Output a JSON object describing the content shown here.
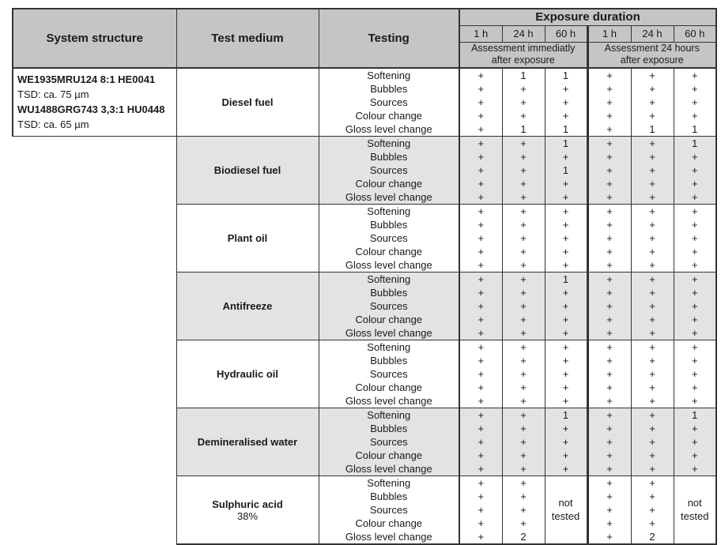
{
  "table": {
    "col_headers": {
      "system_structure": "System structure",
      "test_medium": "Test medium",
      "testing": "Testing"
    },
    "exposure": {
      "title": "Exposure duration",
      "times": [
        "1 h",
        "24 h",
        "60 h",
        "1 h",
        "24 h",
        "60 h"
      ],
      "group_labels": [
        "Assessment immediatly after exposure",
        "Assessment 24 hours after exposure"
      ]
    },
    "system_structure_lines": [
      {
        "text": "WE1935MRU124 8:1 HE0041",
        "bold": true
      },
      {
        "text": "TSD: ca. 75 µm",
        "bold": false
      },
      {
        "text": "WU1488GRG743 3,3:1 HU0448",
        "bold": true
      },
      {
        "text": "TSD: ca. 65 µm",
        "bold": false
      }
    ],
    "testing_labels": [
      "Softening",
      "Bubbles",
      "Sources",
      "Colour change",
      "Gloss level change"
    ],
    "not_tested": "not tested",
    "sections": [
      {
        "medium": "Diesel fuel",
        "medium_line2": "",
        "shaded": false,
        "rows": [
          [
            "+",
            "1",
            "1",
            "+",
            "+",
            "+"
          ],
          [
            "+",
            "+",
            "+",
            "+",
            "+",
            "+"
          ],
          [
            "+",
            "+",
            "+",
            "+",
            "+",
            "+"
          ],
          [
            "+",
            "+",
            "+",
            "+",
            "+",
            "+"
          ],
          [
            "+",
            "1",
            "1",
            "+",
            "1",
            "1"
          ]
        ]
      },
      {
        "medium": "Biodiesel fuel",
        "medium_line2": "",
        "shaded": true,
        "rows": [
          [
            "+",
            "+",
            "1",
            "+",
            "+",
            "1"
          ],
          [
            "+",
            "+",
            "+",
            "+",
            "+",
            "+"
          ],
          [
            "+",
            "+",
            "1",
            "+",
            "+",
            "+"
          ],
          [
            "+",
            "+",
            "+",
            "+",
            "+",
            "+"
          ],
          [
            "+",
            "+",
            "+",
            "+",
            "+",
            "+"
          ]
        ]
      },
      {
        "medium": "Plant oil",
        "medium_line2": "",
        "shaded": false,
        "rows": [
          [
            "+",
            "+",
            "+",
            "+",
            "+",
            "+"
          ],
          [
            "+",
            "+",
            "+",
            "+",
            "+",
            "+"
          ],
          [
            "+",
            "+",
            "+",
            "+",
            "+",
            "+"
          ],
          [
            "+",
            "+",
            "+",
            "+",
            "+",
            "+"
          ],
          [
            "+",
            "+",
            "+",
            "+",
            "+",
            "+"
          ]
        ]
      },
      {
        "medium": "Antifreeze",
        "medium_line2": "",
        "shaded": true,
        "rows": [
          [
            "+",
            "+",
            "1",
            "+",
            "+",
            "+"
          ],
          [
            "+",
            "+",
            "+",
            "+",
            "+",
            "+"
          ],
          [
            "+",
            "+",
            "+",
            "+",
            "+",
            "+"
          ],
          [
            "+",
            "+",
            "+",
            "+",
            "+",
            "+"
          ],
          [
            "+",
            "+",
            "+",
            "+",
            "+",
            "+"
          ]
        ]
      },
      {
        "medium": "Hydraulic oil",
        "medium_line2": "",
        "shaded": false,
        "rows": [
          [
            "+",
            "+",
            "+",
            "+",
            "+",
            "+"
          ],
          [
            "+",
            "+",
            "+",
            "+",
            "+",
            "+"
          ],
          [
            "+",
            "+",
            "+",
            "+",
            "+",
            "+"
          ],
          [
            "+",
            "+",
            "+",
            "+",
            "+",
            "+"
          ],
          [
            "+",
            "+",
            "+",
            "+",
            "+",
            "+"
          ]
        ]
      },
      {
        "medium": "Demineralised water",
        "medium_line2": "",
        "shaded": true,
        "rows": [
          [
            "+",
            "+",
            "1",
            "+",
            "+",
            "1"
          ],
          [
            "+",
            "+",
            "+",
            "+",
            "+",
            "+"
          ],
          [
            "+",
            "+",
            "+",
            "+",
            "+",
            "+"
          ],
          [
            "+",
            "+",
            "+",
            "+",
            "+",
            "+"
          ],
          [
            "+",
            "+",
            "+",
            "+",
            "+",
            "+"
          ]
        ]
      },
      {
        "medium": "Sulphuric acid",
        "medium_line2": "38%",
        "shaded": false,
        "not_tested_cols": [
          2,
          5
        ],
        "rows": [
          [
            "+",
            "+",
            null,
            "+",
            "+",
            null
          ],
          [
            "+",
            "+",
            null,
            "+",
            "+",
            null
          ],
          [
            "+",
            "+",
            null,
            "+",
            "+",
            null
          ],
          [
            "+",
            "+",
            null,
            "+",
            "+",
            null
          ],
          [
            "+",
            "2",
            null,
            "+",
            "2",
            null
          ]
        ]
      }
    ]
  },
  "colors": {
    "header_bg": "#c5c5c5",
    "section_shade": "#e3e3e3",
    "border": "#333333"
  }
}
